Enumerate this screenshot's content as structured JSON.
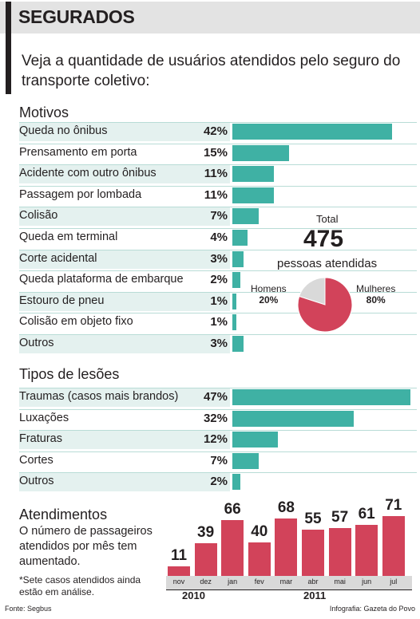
{
  "header": {
    "title": "SEGURADOS"
  },
  "intro": "Veja a quantidade de usuários atendidos pelo seguro do transporte coletivo:",
  "chart_data": [
    {
      "type": "bar",
      "title": "Motivos",
      "orientation": "horizontal",
      "unit": "%",
      "categories": [
        "Queda no ônibus",
        "Prensamento em porta",
        "Acidente com outro ônibus",
        "Passagem por lombada",
        "Colisão",
        "Queda em terminal",
        "Corte acidental",
        "Queda plataforma de embarque",
        "Estouro de pneu",
        "Colisão em objeto fixo",
        "Outros"
      ],
      "values": [
        42,
        15,
        11,
        11,
        7,
        4,
        3,
        2,
        1,
        1,
        3
      ],
      "labels": [
        "42%",
        "15%",
        "11%",
        "11%",
        "7%",
        "4%",
        "3%",
        "2%",
        "1%",
        "1%",
        "3%"
      ],
      "color": "#3fb1a4"
    },
    {
      "type": "pie",
      "total_label": "Total",
      "total": "475",
      "caption": "pessoas atendidas",
      "slices": [
        {
          "name": "Homens",
          "value": 20,
          "label": "20%",
          "color": "#d9d9d9"
        },
        {
          "name": "Mulheres",
          "value": 80,
          "label": "80%",
          "color": "#d2435a"
        }
      ]
    },
    {
      "type": "bar",
      "title": "Tipos de lesões",
      "orientation": "horizontal",
      "unit": "%",
      "categories": [
        "Traumas (casos mais brandos)",
        "Luxações",
        "Fraturas",
        "Cortes",
        "Outros"
      ],
      "values": [
        47,
        32,
        12,
        7,
        2
      ],
      "labels": [
        "47%",
        "32%",
        "12%",
        "7%",
        "2%"
      ],
      "color": "#3fb1a4"
    },
    {
      "type": "bar",
      "title": "Atendimentos",
      "categories": [
        "nov",
        "dez",
        "jan",
        "fev",
        "mar",
        "abr",
        "mai",
        "jun",
        "jul"
      ],
      "values": [
        11,
        39,
        66,
        40,
        68,
        55,
        57,
        61,
        71
      ],
      "years": [
        {
          "label": "2010",
          "months": [
            "nov",
            "dez"
          ]
        },
        {
          "label": "2011",
          "months": [
            "jan",
            "fev",
            "mar",
            "abr",
            "mai",
            "jun",
            "jul"
          ]
        }
      ],
      "color": "#d2435a"
    }
  ],
  "atendimentos": {
    "text": "O número de passageiros atendidos por mês tem aumentado.",
    "note": "*Sete casos atendidos ainda estão em análise."
  },
  "footer": {
    "source": "Fonte: Segbus",
    "credit": "Infografia: Gazeta do Povo"
  }
}
